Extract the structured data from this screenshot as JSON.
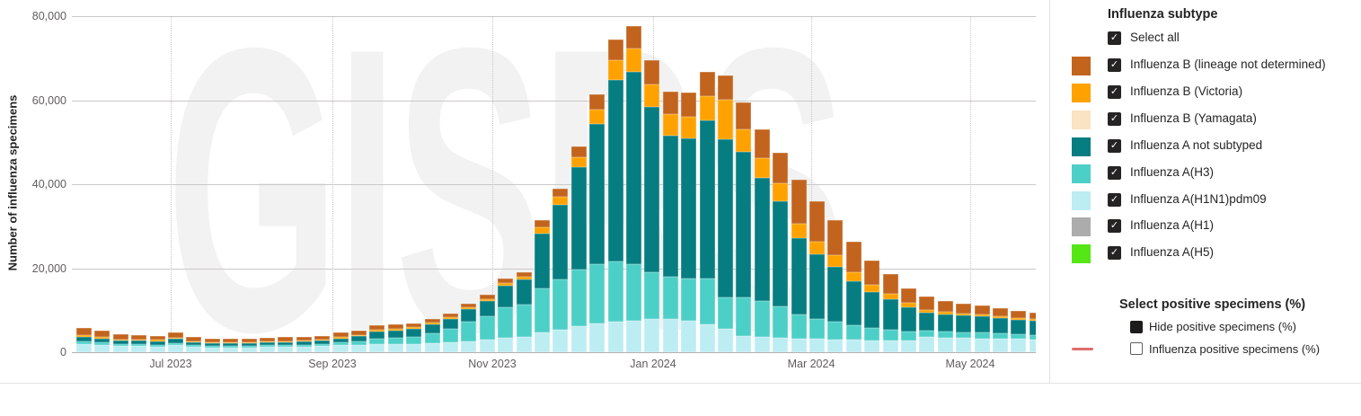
{
  "watermark": "GISRS",
  "y_axis": {
    "title": "Number of influenza specimens",
    "ticks": [
      "80,000",
      "60,000",
      "40,000",
      "20,000",
      "0"
    ]
  },
  "x_axis": {
    "ticks": [
      "Jul 2023",
      "Sep 2023",
      "Nov 2023",
      "Jan 2024",
      "Mar 2024",
      "May 2024"
    ]
  },
  "legend": {
    "title": "Influenza subtype",
    "select_all_label": "Select all",
    "items": [
      {
        "label": "Influenza B (lineage not determined)",
        "color": "#C2641E"
      },
      {
        "label": "Influenza B (Victoria)",
        "color": "#FFA200"
      },
      {
        "label": "Influenza B (Yamagata)",
        "color": "#FAE3C2"
      },
      {
        "label": "Influenza A not subtyped",
        "color": "#067D81"
      },
      {
        "label": "Influenza A(H3)",
        "color": "#4CCFC7"
      },
      {
        "label": "Influenza A(H1N1)pdm09",
        "color": "#BCEDF2"
      },
      {
        "label": "Influenza A(H1)",
        "color": "#ACACAC"
      },
      {
        "label": "Influenza A(H5)",
        "color": "#56E615"
      }
    ],
    "positive_section": {
      "title": "Select positive specimens (%)",
      "hide_label": "Hide positive specimens (%)",
      "line_label": "Influenza positive specimens (%)",
      "line_color": "#E26D6D"
    }
  },
  "chart_data": {
    "type": "bar",
    "stacked": true,
    "ylabel": "Number of influenza specimens",
    "ylim": [
      0,
      80000
    ],
    "x_ticks": [
      "Jul 2023",
      "Sep 2023",
      "Nov 2023",
      "Jan 2024",
      "Mar 2024",
      "May 2024"
    ],
    "x_description": "53 weekly bars, early June 2023 through late May 2024; peak week is late December 2023 (~77,700 specimens)",
    "grid": {
      "horizontal": "solid",
      "vertical": "dotted at labeled months"
    },
    "legend_position": "right",
    "stack_order_bottom_to_top": [
      "Influenza A(H1N1)pdm09",
      "Influenza A(H3)",
      "Influenza A not subtyped",
      "Influenza B (Victoria)",
      "Influenza B (lineage not determined)"
    ],
    "negligible_series_all_zero": [
      "Influenza B (Yamagata)",
      "Influenza A(H1)",
      "Influenza A(H5)"
    ],
    "series": [
      {
        "name": "Influenza A(H1N1)pdm09",
        "color": "#BCEDF2",
        "values": [
          1900,
          1700,
          1500,
          1400,
          1300,
          1600,
          1300,
          1100,
          1100,
          1100,
          1200,
          1300,
          1300,
          1400,
          1600,
          1700,
          1900,
          1900,
          1900,
          2100,
          2300,
          2600,
          2900,
          3400,
          3600,
          4600,
          5400,
          6200,
          6800,
          7200,
          7500,
          7900,
          8000,
          7400,
          6600,
          5500,
          3900,
          3700,
          3500,
          3200,
          3100,
          3000,
          2900,
          2800,
          2800,
          2700,
          3600,
          3500,
          3400,
          3300,
          3200,
          3100,
          3000
        ]
      },
      {
        "name": "Influenza A(H3)",
        "color": "#4CCFC7",
        "values": [
          700,
          600,
          500,
          500,
          500,
          600,
          400,
          400,
          400,
          400,
          400,
          400,
          500,
          500,
          700,
          900,
          1400,
          1600,
          1800,
          2400,
          3200,
          4600,
          5600,
          7300,
          7800,
          10500,
          12000,
          13500,
          14200,
          14500,
          13500,
          11100,
          10000,
          10200,
          10900,
          7500,
          9200,
          8400,
          7500,
          5800,
          4800,
          4200,
          3500,
          3000,
          2600,
          2200,
          1500,
          1400,
          1300,
          1300,
          1200,
          1100,
          1100
        ]
      },
      {
        "name": "Influenza A not subtyped",
        "color": "#067D81",
        "values": [
          1100,
          1000,
          800,
          800,
          800,
          900,
          700,
          600,
          600,
          600,
          700,
          700,
          700,
          800,
          1000,
          1200,
          1600,
          1700,
          1800,
          2100,
          2400,
          3000,
          3700,
          5200,
          5900,
          13200,
          17700,
          24300,
          33400,
          43200,
          45700,
          39300,
          33600,
          33200,
          37600,
          37600,
          34500,
          29500,
          25000,
          18200,
          15400,
          13200,
          10600,
          8600,
          7200,
          5900,
          4300,
          4100,
          4000,
          3900,
          3700,
          3500,
          3400
        ]
      },
      {
        "name": "Influenza B (Victoria)",
        "color": "#FFA200",
        "values": [
          400,
          400,
          300,
          300,
          300,
          300,
          200,
          200,
          200,
          200,
          200,
          200,
          200,
          200,
          300,
          300,
          400,
          400,
          400,
          400,
          400,
          500,
          500,
          600,
          700,
          1400,
          1800,
          2400,
          3400,
          4700,
          5700,
          5500,
          5000,
          5200,
          5900,
          9500,
          5400,
          4500,
          4300,
          3400,
          3000,
          2600,
          2100,
          1700,
          1300,
          1000,
          700,
          600,
          600,
          500,
          500,
          500,
          400
        ]
      },
      {
        "name": "Influenza B (lineage not determined)",
        "color": "#C2641E",
        "values": [
          1600,
          1400,
          1200,
          1100,
          1000,
          1300,
          1000,
          900,
          900,
          900,
          900,
          1000,
          900,
          1000,
          1100,
          1100,
          1200,
          1000,
          900,
          900,
          900,
          900,
          1000,
          1100,
          1000,
          1800,
          2000,
          2600,
          3600,
          4900,
          5300,
          5800,
          5500,
          5800,
          5800,
          5800,
          6500,
          7000,
          7200,
          10500,
          9600,
          8500,
          7200,
          5700,
          4700,
          3400,
          3200,
          2600,
          2300,
          2100,
          1900,
          1600,
          1500
        ]
      }
    ]
  }
}
